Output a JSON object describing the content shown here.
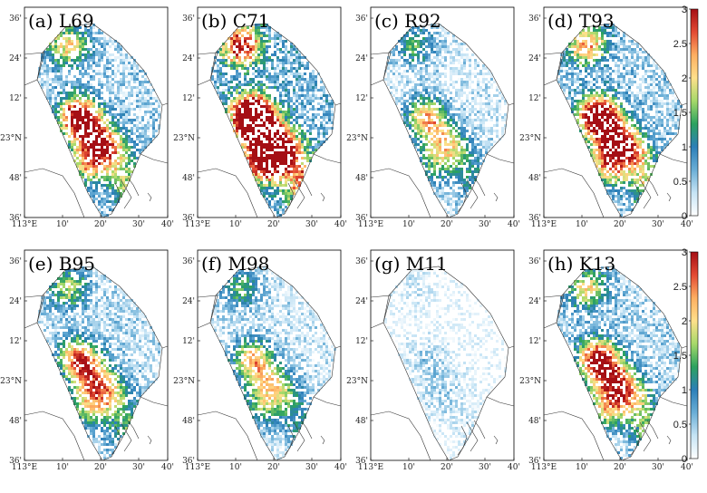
{
  "figure": {
    "panels": [
      {
        "label": "(a) L69",
        "intensity": 0.85
      },
      {
        "label": "(b) C71",
        "intensity": 1.25
      },
      {
        "label": "(c) R92",
        "intensity": 0.55
      },
      {
        "label": "(d) T93",
        "intensity": 0.95
      },
      {
        "label": "(e) B95",
        "intensity": 0.7
      },
      {
        "label": "(f) M98",
        "intensity": 0.55
      },
      {
        "label": "(g) M11",
        "intensity": 0.12
      },
      {
        "label": "(h) K13",
        "intensity": 0.8
      }
    ],
    "lat_ticks": [
      "36'",
      "24'",
      "12'",
      "23°N",
      "48'",
      "36'"
    ],
    "lon_ticks": [
      "113°E",
      "10'",
      "20'",
      "30'",
      "40'"
    ],
    "colorbar": {
      "ticks": [
        "3",
        "2.5",
        "2",
        "1.5",
        "1",
        "0.5",
        "0"
      ],
      "vmin": 0,
      "vmax": 3,
      "colors": [
        "#ffffff",
        "#c6e4f5",
        "#6aaed6",
        "#2c7fb8",
        "#2ca25f",
        "#a6d96a",
        "#fee08b",
        "#fdae61",
        "#e34a33",
        "#a50f15"
      ]
    }
  }
}
